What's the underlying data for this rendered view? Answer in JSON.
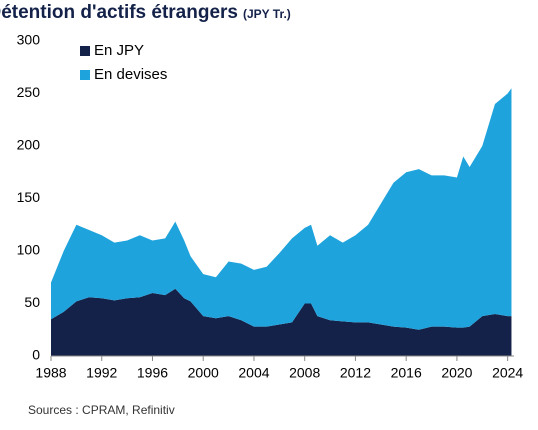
{
  "chart_data": {
    "type": "stacked-area",
    "title": "Japan - Détention d'actifs étrangers",
    "subtitle": "(JPY Tr.)",
    "source": "Sources : CPRAM, Refinitiv",
    "x": [
      1988,
      1989,
      1990,
      1991,
      1992,
      1993,
      1994,
      1995,
      1996,
      1997,
      1997.8,
      1998.5,
      1999,
      2000,
      2001,
      2002,
      2003,
      2004,
      2005,
      2006,
      2007,
      2008,
      2008.5,
      2009,
      2010,
      2011,
      2012,
      2013,
      2014,
      2015,
      2016,
      2017,
      2018,
      2019,
      2020,
      2020.5,
      2021,
      2022,
      2023,
      2024,
      2024.3
    ],
    "series": [
      {
        "name": "En JPY",
        "color": "#14224a",
        "values": [
          35,
          42,
          52,
          56,
          55,
          53,
          55,
          56,
          60,
          58,
          64,
          55,
          52,
          38,
          36,
          38,
          34,
          28,
          28,
          30,
          32,
          50,
          50,
          38,
          34,
          33,
          32,
          32,
          30,
          28,
          27,
          25,
          28,
          28,
          27,
          27,
          28,
          38,
          40,
          38,
          38
        ]
      },
      {
        "name": "En devises",
        "color": "#1fa3dc",
        "values": [
          35,
          58,
          73,
          64,
          60,
          55,
          55,
          59,
          50,
          54,
          64,
          55,
          43,
          40,
          39,
          52,
          54,
          54,
          57,
          68,
          80,
          72,
          75,
          67,
          81,
          75,
          83,
          93,
          115,
          137,
          148,
          153,
          144,
          144,
          143,
          163,
          152,
          162,
          200,
          212,
          217
        ]
      }
    ],
    "xlim": [
      1988,
      2024.5
    ],
    "xticks": [
      1988,
      1992,
      1996,
      2000,
      2004,
      2008,
      2012,
      2016,
      2020,
      2024
    ],
    "ylim": [
      0,
      300
    ],
    "yticks": [
      0,
      50,
      100,
      150,
      200,
      250,
      300
    ],
    "legend": "upper-left"
  }
}
